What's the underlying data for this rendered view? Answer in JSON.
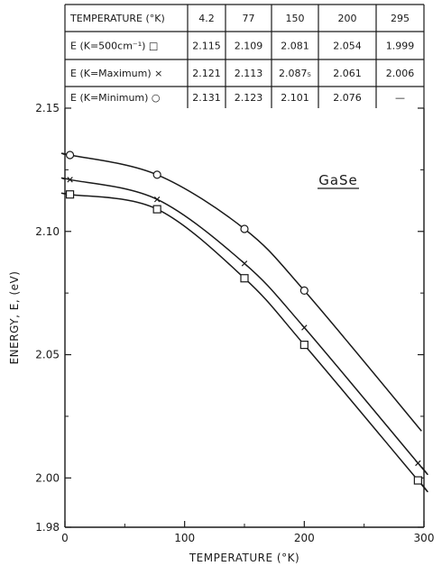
{
  "chart_data": {
    "type": "line",
    "title": "",
    "annotation": "GaSe",
    "xlabel": "TEMPERATURE (°K)",
    "ylabel": "ENERGY, E, (eV)",
    "xlim": [
      0,
      300
    ],
    "ylim": [
      1.98,
      2.15
    ],
    "xticks": [
      "0",
      "100",
      "200",
      "300"
    ],
    "yticks": [
      "1.98",
      "2.00",
      "2.05",
      "2.10",
      "2.15"
    ],
    "grid": false,
    "legend": "none (markers identified in table)",
    "series": [
      {
        "name": "E (K=500cm⁻¹) □",
        "marker": "square",
        "x": [
          4.2,
          77,
          150,
          200,
          295
        ],
        "y": [
          2.115,
          2.109,
          2.081,
          2.054,
          1.999
        ]
      },
      {
        "name": "E (K=Maximum) ×",
        "marker": "cross",
        "x": [
          4.2,
          77,
          150,
          200,
          295
        ],
        "y": [
          2.121,
          2.113,
          2.087,
          2.061,
          2.006
        ]
      },
      {
        "name": "E (K=Minimum) ○",
        "marker": "circle",
        "x": [
          4.2,
          77,
          150,
          200
        ],
        "y": [
          2.131,
          2.123,
          2.101,
          2.076
        ]
      }
    ],
    "table": {
      "header": [
        "TEMPERATURE (°K)",
        "4.2",
        "77",
        "150",
        "200",
        "295"
      ],
      "rows": [
        [
          "E (K=500cm⁻¹) □",
          "2.115",
          "2.109",
          "2.081",
          "2.054",
          "1.999"
        ],
        [
          "E (K=Maximum) ×",
          "2.121",
          "2.113",
          "2.087₅",
          "2.061",
          "2.006"
        ],
        [
          "E (K=Minimum) ○",
          "2.131",
          "2.123",
          "2.101",
          "2.076",
          "—"
        ]
      ]
    }
  }
}
